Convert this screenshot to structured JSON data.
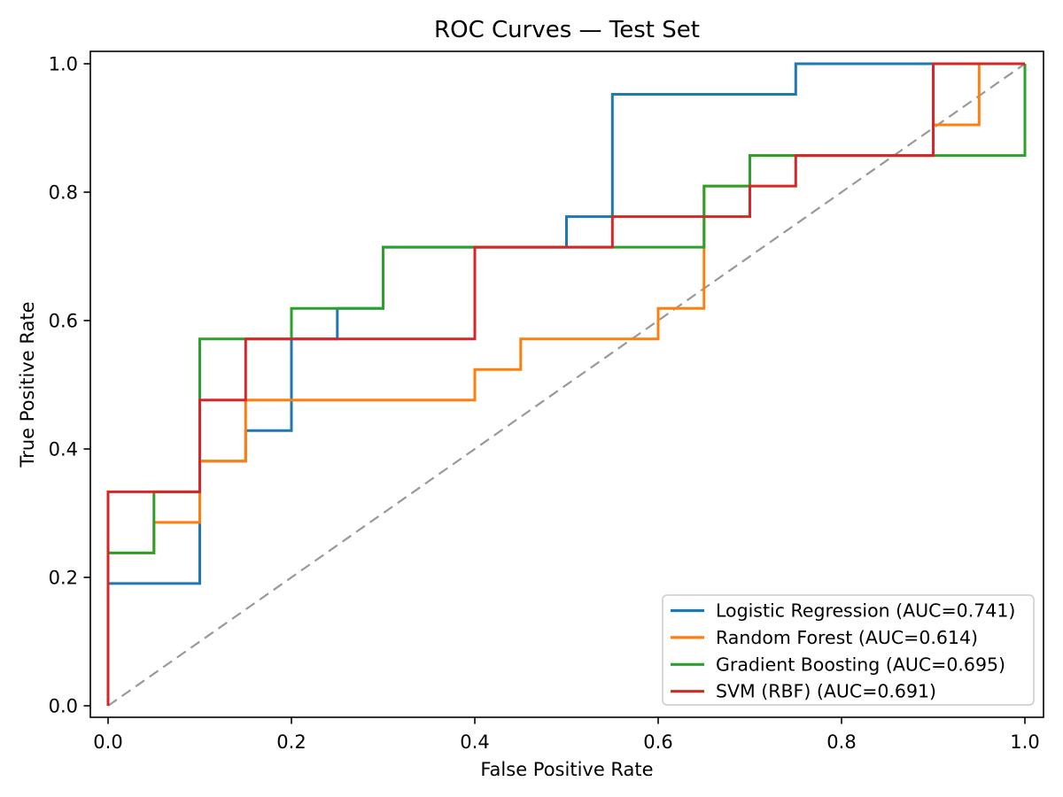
{
  "chart_data": {
    "type": "line",
    "subtype": "roc-step-curves",
    "title": "ROC Curves — Test Set",
    "xlabel": "False Positive Rate",
    "ylabel": "True Positive Rate",
    "xlim": [
      -0.02,
      1.02
    ],
    "ylim": [
      -0.02,
      1.02
    ],
    "grid": false,
    "legend_position": "lower right",
    "x_ticks": {
      "values": [
        0.0,
        0.2,
        0.4,
        0.6,
        0.8,
        1.0
      ],
      "labels": [
        "0.0",
        "0.2",
        "0.4",
        "0.6",
        "0.8",
        "1.0"
      ]
    },
    "y_ticks": {
      "values": [
        0.0,
        0.2,
        0.4,
        0.6,
        0.8,
        1.0
      ],
      "labels": [
        "0.0",
        "0.2",
        "0.4",
        "0.6",
        "0.8",
        "1.0"
      ]
    },
    "series": [
      {
        "name": "Logistic Regression",
        "auc": "0.741",
        "legend_label": "Logistic Regression (AUC=0.741)",
        "color": "#1f77b4",
        "fpr": [
          0,
          0,
          0.1,
          0.1,
          0.15,
          0.15,
          0.2,
          0.2,
          0.25,
          0.25,
          0.3,
          0.3,
          0.5,
          0.5,
          0.55,
          0.55,
          0.75,
          0.75,
          1.0
        ],
        "tpr": [
          0,
          0.1905,
          0.1905,
          0.381,
          0.381,
          0.4286,
          0.4286,
          0.5714,
          0.5714,
          0.619,
          0.619,
          0.7143,
          0.7143,
          0.7619,
          0.7619,
          0.9524,
          0.9524,
          1.0,
          1.0
        ]
      },
      {
        "name": "Random Forest",
        "auc": "0.614",
        "legend_label": "Random Forest (AUC=0.614)",
        "color": "#ff7f0e",
        "fpr": [
          0,
          0,
          0.05,
          0.05,
          0.1,
          0.1,
          0.15,
          0.15,
          0.4,
          0.4,
          0.45,
          0.45,
          0.6,
          0.6,
          0.65,
          0.65,
          0.7,
          0.7,
          0.9,
          0.9,
          0.95,
          0.95,
          1.0
        ],
        "tpr": [
          0,
          0.2381,
          0.2381,
          0.2857,
          0.2857,
          0.381,
          0.381,
          0.4762,
          0.4762,
          0.5238,
          0.5238,
          0.5714,
          0.5714,
          0.619,
          0.619,
          0.8095,
          0.8095,
          0.8571,
          0.8571,
          0.9048,
          0.9048,
          1.0,
          1.0
        ]
      },
      {
        "name": "Gradient Boosting",
        "auc": "0.695",
        "legend_label": "Gradient Boosting (AUC=0.695)",
        "color": "#2ca02c",
        "fpr": [
          0,
          0,
          0.05,
          0.05,
          0.1,
          0.1,
          0.2,
          0.2,
          0.3,
          0.3,
          0.65,
          0.65,
          0.7,
          0.7,
          1.0,
          1.0
        ],
        "tpr": [
          0,
          0.2381,
          0.2381,
          0.3333,
          0.3333,
          0.5714,
          0.5714,
          0.619,
          0.619,
          0.7143,
          0.7143,
          0.8095,
          0.8095,
          0.8571,
          0.8571,
          1.0
        ]
      },
      {
        "name": "SVM (RBF)",
        "auc": "0.691",
        "legend_label": "SVM (RBF) (AUC=0.691)",
        "color": "#d62728",
        "fpr": [
          0,
          0,
          0.1,
          0.1,
          0.15,
          0.15,
          0.4,
          0.4,
          0.55,
          0.55,
          0.7,
          0.7,
          0.75,
          0.75,
          0.9,
          0.9,
          1.0
        ],
        "tpr": [
          0,
          0.3333,
          0.3333,
          0.4762,
          0.4762,
          0.5714,
          0.5714,
          0.7143,
          0.7143,
          0.7619,
          0.7619,
          0.8095,
          0.8095,
          0.8571,
          0.8571,
          1.0,
          1.0
        ]
      }
    ],
    "reference_line": {
      "name": "chance-diagonal",
      "style": "dashed",
      "color": "#999999",
      "from": [
        0,
        0
      ],
      "to": [
        1,
        1
      ]
    }
  }
}
